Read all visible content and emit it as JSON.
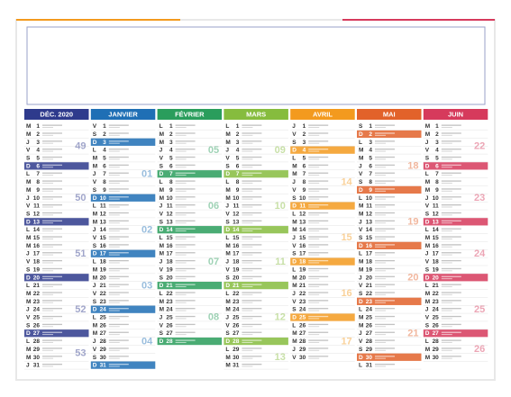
{
  "calendar": {
    "months": [
      {
        "name": "DÉC. 2020",
        "color": "#2e3a8c",
        "weekdays": [
          "M",
          "M",
          "J",
          "V",
          "S",
          "D",
          "L",
          "M",
          "M",
          "J",
          "V",
          "S",
          "D",
          "L",
          "M",
          "M",
          "J",
          "V",
          "S",
          "D",
          "L",
          "M",
          "M",
          "J",
          "V",
          "S",
          "D",
          "L",
          "M",
          "M",
          "J"
        ],
        "dates": [
          1,
          2,
          3,
          4,
          5,
          6,
          7,
          8,
          9,
          10,
          11,
          12,
          13,
          14,
          15,
          16,
          17,
          18,
          19,
          20,
          21,
          22,
          23,
          24,
          25,
          26,
          27,
          28,
          29,
          30,
          31
        ],
        "weeks": [
          "49",
          "50",
          "51",
          "52",
          "53"
        ]
      },
      {
        "name": "JANVIER",
        "color": "#1f6fb5",
        "weekdays": [
          "V",
          "S",
          "D",
          "L",
          "M",
          "M",
          "J",
          "V",
          "S",
          "D",
          "L",
          "M",
          "M",
          "J",
          "V",
          "S",
          "D",
          "L",
          "M",
          "M",
          "J",
          "V",
          "S",
          "D",
          "L",
          "M",
          "M",
          "J",
          "V",
          "S",
          "D"
        ],
        "dates": [
          1,
          2,
          3,
          4,
          5,
          6,
          7,
          8,
          9,
          10,
          11,
          12,
          13,
          14,
          15,
          16,
          17,
          18,
          19,
          20,
          21,
          22,
          23,
          24,
          25,
          26,
          27,
          28,
          29,
          30,
          31
        ],
        "weeks": [
          null,
          "01",
          "02",
          "03",
          "04"
        ]
      },
      {
        "name": "FÉVRIER",
        "color": "#2a9d5c",
        "weekdays": [
          "L",
          "M",
          "M",
          "J",
          "V",
          "S",
          "D",
          "L",
          "M",
          "M",
          "J",
          "V",
          "S",
          "D",
          "L",
          "M",
          "M",
          "J",
          "V",
          "S",
          "D",
          "L",
          "M",
          "M",
          "J",
          "V",
          "S",
          "D"
        ],
        "dates": [
          1,
          2,
          3,
          4,
          5,
          6,
          7,
          8,
          9,
          10,
          11,
          12,
          13,
          14,
          15,
          16,
          17,
          18,
          19,
          20,
          21,
          22,
          23,
          24,
          25,
          26,
          27,
          28
        ],
        "weeks": [
          "05",
          "06",
          "07",
          "08"
        ]
      },
      {
        "name": "MARS",
        "color": "#86bc3e",
        "weekdays": [
          "L",
          "M",
          "M",
          "J",
          "V",
          "S",
          "D",
          "L",
          "M",
          "M",
          "J",
          "V",
          "S",
          "D",
          "L",
          "M",
          "M",
          "J",
          "V",
          "S",
          "D",
          "L",
          "M",
          "M",
          "J",
          "V",
          "S",
          "D",
          "L",
          "M",
          "M"
        ],
        "dates": [
          1,
          2,
          3,
          4,
          5,
          6,
          7,
          8,
          9,
          10,
          11,
          12,
          13,
          14,
          15,
          16,
          17,
          18,
          19,
          20,
          21,
          22,
          23,
          24,
          25,
          26,
          27,
          28,
          29,
          30,
          31
        ],
        "weeks": [
          "09",
          "10",
          "11",
          "12",
          "13"
        ]
      },
      {
        "name": "AVRIL",
        "color": "#f39a1e",
        "weekdays": [
          "J",
          "V",
          "S",
          "D",
          "L",
          "M",
          "M",
          "J",
          "V",
          "S",
          "D",
          "L",
          "M",
          "M",
          "J",
          "V",
          "S",
          "D",
          "L",
          "M",
          "M",
          "J",
          "V",
          "S",
          "D",
          "L",
          "M",
          "M",
          "J",
          "V"
        ],
        "dates": [
          1,
          2,
          3,
          4,
          5,
          6,
          7,
          8,
          9,
          10,
          11,
          12,
          13,
          14,
          15,
          16,
          17,
          18,
          19,
          20,
          21,
          22,
          23,
          24,
          25,
          26,
          27,
          28,
          29,
          30
        ],
        "weeks": [
          null,
          "14",
          "15",
          "16",
          "17"
        ]
      },
      {
        "name": "MAI",
        "color": "#e2622a",
        "weekdays": [
          "S",
          "D",
          "L",
          "M",
          "M",
          "J",
          "V",
          "S",
          "D",
          "L",
          "M",
          "M",
          "J",
          "V",
          "S",
          "D",
          "L",
          "M",
          "M",
          "J",
          "V",
          "S",
          "D",
          "L",
          "M",
          "M",
          "J",
          "V",
          "S",
          "D",
          "L"
        ],
        "dates": [
          1,
          2,
          3,
          4,
          5,
          6,
          7,
          8,
          9,
          10,
          11,
          12,
          13,
          14,
          15,
          16,
          17,
          18,
          19,
          20,
          21,
          22,
          23,
          24,
          25,
          26,
          27,
          28,
          29,
          30,
          31
        ],
        "weeks": [
          null,
          "18",
          "19",
          "20",
          "21",
          null
        ]
      },
      {
        "name": "JUIN",
        "color": "#d63a5c",
        "weekdays": [
          "M",
          "M",
          "J",
          "V",
          "S",
          "D",
          "L",
          "M",
          "M",
          "J",
          "V",
          "S",
          "D",
          "L",
          "M",
          "M",
          "J",
          "V",
          "S",
          "D",
          "L",
          "M",
          "M",
          "J",
          "V",
          "S",
          "D",
          "L",
          "M",
          "M"
        ],
        "dates": [
          1,
          2,
          3,
          4,
          5,
          6,
          7,
          8,
          9,
          10,
          11,
          12,
          13,
          14,
          15,
          16,
          17,
          18,
          19,
          20,
          21,
          22,
          23,
          24,
          25,
          26,
          27,
          28,
          29,
          30
        ],
        "weeks": [
          "22",
          "23",
          "24",
          "25",
          "26"
        ]
      }
    ]
  }
}
